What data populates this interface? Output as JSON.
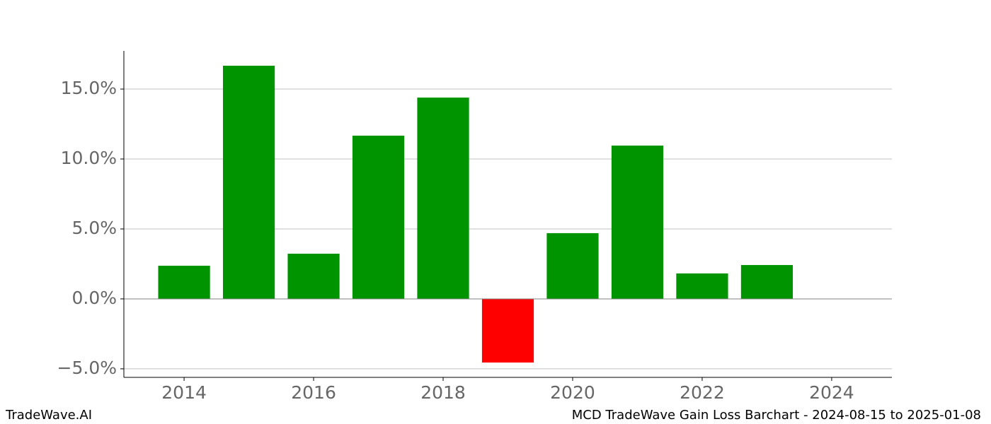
{
  "chart_data": {
    "type": "bar",
    "footer_left": "TradeWave.AI",
    "footer_right": "MCD TradeWave Gain Loss Barchart - 2024-08-15 to 2025-01-08",
    "x": [
      2014,
      2015,
      2016,
      2017,
      2018,
      2019,
      2020,
      2021,
      2022,
      2023
    ],
    "values": [
      2.37,
      16.67,
      3.23,
      11.67,
      14.39,
      -4.55,
      4.7,
      10.96,
      1.82,
      2.42
    ],
    "colors": [
      "#009400",
      "#009400",
      "#009400",
      "#009400",
      "#009400",
      "#ff0000",
      "#009400",
      "#009400",
      "#009400",
      "#009400"
    ],
    "xlim": [
      2013.07,
      2024.93
    ],
    "xticks": [
      2014,
      2016,
      2018,
      2020,
      2022,
      2024
    ],
    "ylim": [
      -5.61,
      17.73
    ],
    "yticks": [
      {
        "value": -5,
        "label": "−5.0%"
      },
      {
        "value": 0,
        "label": "0.0%"
      },
      {
        "value": 5,
        "label": "5.0%"
      },
      {
        "value": 10,
        "label": "10.0%"
      },
      {
        "value": 15,
        "label": "15.0%"
      }
    ],
    "grid": true
  }
}
